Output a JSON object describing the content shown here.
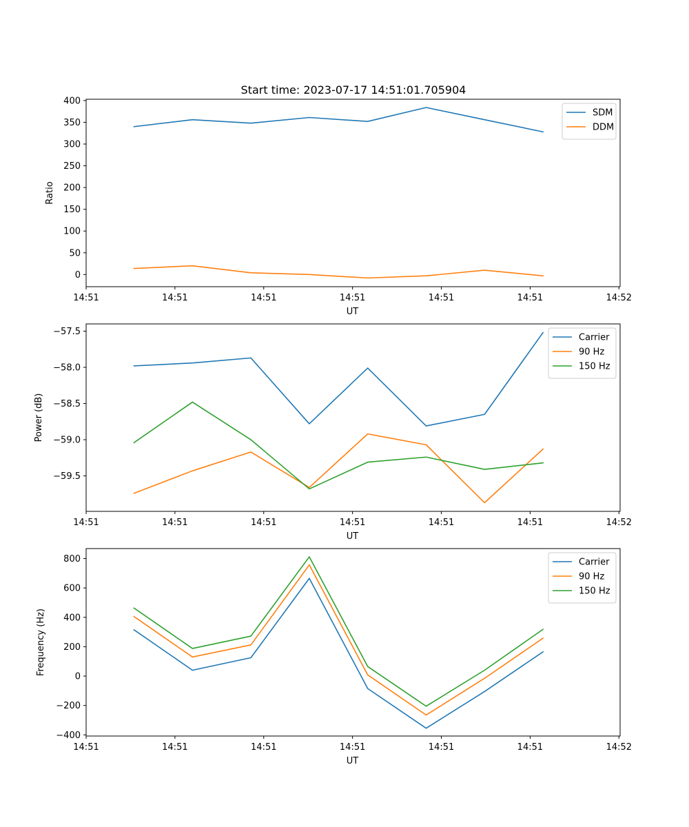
{
  "figure": {
    "suptitle": "Start time: 2023-07-17 14:51:01.705904"
  },
  "chart_data": [
    {
      "type": "line",
      "title": "Start time: 2023-07-17 14:51:01.705904",
      "xlabel": "UT",
      "ylabel": "Ratio",
      "x_points": [
        1,
        2,
        3,
        4,
        5,
        6,
        7,
        8
      ],
      "xlim": [
        0.18,
        9.32
      ],
      "xtick_positions": [
        0.18,
        1.7,
        3.22,
        4.74,
        6.26,
        7.78,
        9.3
      ],
      "xtick_labels": [
        "14:51",
        "14:51",
        "14:51",
        "14:51",
        "14:51",
        "14:51",
        "14:52"
      ],
      "ylim": [
        -28,
        403
      ],
      "yticks": [
        0,
        50,
        100,
        150,
        200,
        250,
        300,
        350,
        400
      ],
      "ytick_labels": [
        "0",
        "50",
        "100",
        "150",
        "200",
        "250",
        "300",
        "350",
        "400"
      ],
      "legend": "top-right",
      "series": [
        {
          "name": "SDM",
          "color": "#1f77b4",
          "values": [
            340,
            356,
            348,
            361,
            352,
            384,
            356,
            328
          ]
        },
        {
          "name": "DDM",
          "color": "#ff7f0e",
          "values": [
            14,
            20,
            4,
            0,
            -8,
            -3,
            10,
            -3
          ]
        }
      ]
    },
    {
      "type": "line",
      "title": "",
      "xlabel": "UT",
      "ylabel": "Power (dB)",
      "x_points": [
        1,
        2,
        3,
        4,
        5,
        6,
        7,
        8
      ],
      "xlim": [
        0.18,
        9.32
      ],
      "xtick_positions": [
        0.18,
        1.7,
        3.22,
        4.74,
        6.26,
        7.78,
        9.3
      ],
      "xtick_labels": [
        "14:51",
        "14:51",
        "14:51",
        "14:51",
        "14:51",
        "14:51",
        "14:52"
      ],
      "ylim": [
        -59.99,
        -57.4
      ],
      "yticks": [
        -59.5,
        -59.0,
        -58.5,
        -58.0,
        -57.5
      ],
      "ytick_labels": [
        "−59.5",
        "−59.0",
        "−58.5",
        "−58.0",
        "−57.5"
      ],
      "legend": "top-right",
      "series": [
        {
          "name": "Carrier",
          "color": "#1f77b4",
          "values": [
            -57.98,
            -57.94,
            -57.87,
            -58.78,
            -58.01,
            -58.81,
            -58.65,
            -57.52
          ]
        },
        {
          "name": "90 Hz",
          "color": "#ff7f0e",
          "values": [
            -59.74,
            -59.43,
            -59.17,
            -59.66,
            -58.92,
            -59.07,
            -59.87,
            -59.13
          ]
        },
        {
          "name": "150 Hz",
          "color": "#2ca02c",
          "values": [
            -59.04,
            -58.48,
            -59.0,
            -59.68,
            -59.31,
            -59.24,
            -59.41,
            -59.32
          ]
        }
      ]
    },
    {
      "type": "line",
      "title": "",
      "xlabel": "UT",
      "ylabel": "Frequency (Hz)",
      "x_points": [
        1,
        2,
        3,
        4,
        5,
        6,
        7,
        8
      ],
      "xlim": [
        0.18,
        9.32
      ],
      "xtick_positions": [
        0.18,
        1.7,
        3.22,
        4.74,
        6.26,
        7.78,
        9.3
      ],
      "xtick_labels": [
        "14:51",
        "14:51",
        "14:51",
        "14:51",
        "14:51",
        "14:51",
        "14:52"
      ],
      "ylim": [
        -408,
        868
      ],
      "yticks": [
        -400,
        -200,
        0,
        200,
        400,
        600,
        800
      ],
      "ytick_labels": [
        "−400",
        "−200",
        "0",
        "200",
        "400",
        "600",
        "800"
      ],
      "legend": "top-right",
      "series": [
        {
          "name": "Carrier",
          "color": "#1f77b4",
          "values": [
            315,
            40,
            125,
            665,
            -85,
            -355,
            -105,
            165
          ]
        },
        {
          "name": "90 Hz",
          "color": "#ff7f0e",
          "values": [
            405,
            130,
            212,
            757,
            8,
            -265,
            -15,
            258
          ]
        },
        {
          "name": "150 Hz",
          "color": "#2ca02c",
          "values": [
            463,
            188,
            272,
            812,
            65,
            -205,
            40,
            318
          ]
        }
      ]
    }
  ]
}
